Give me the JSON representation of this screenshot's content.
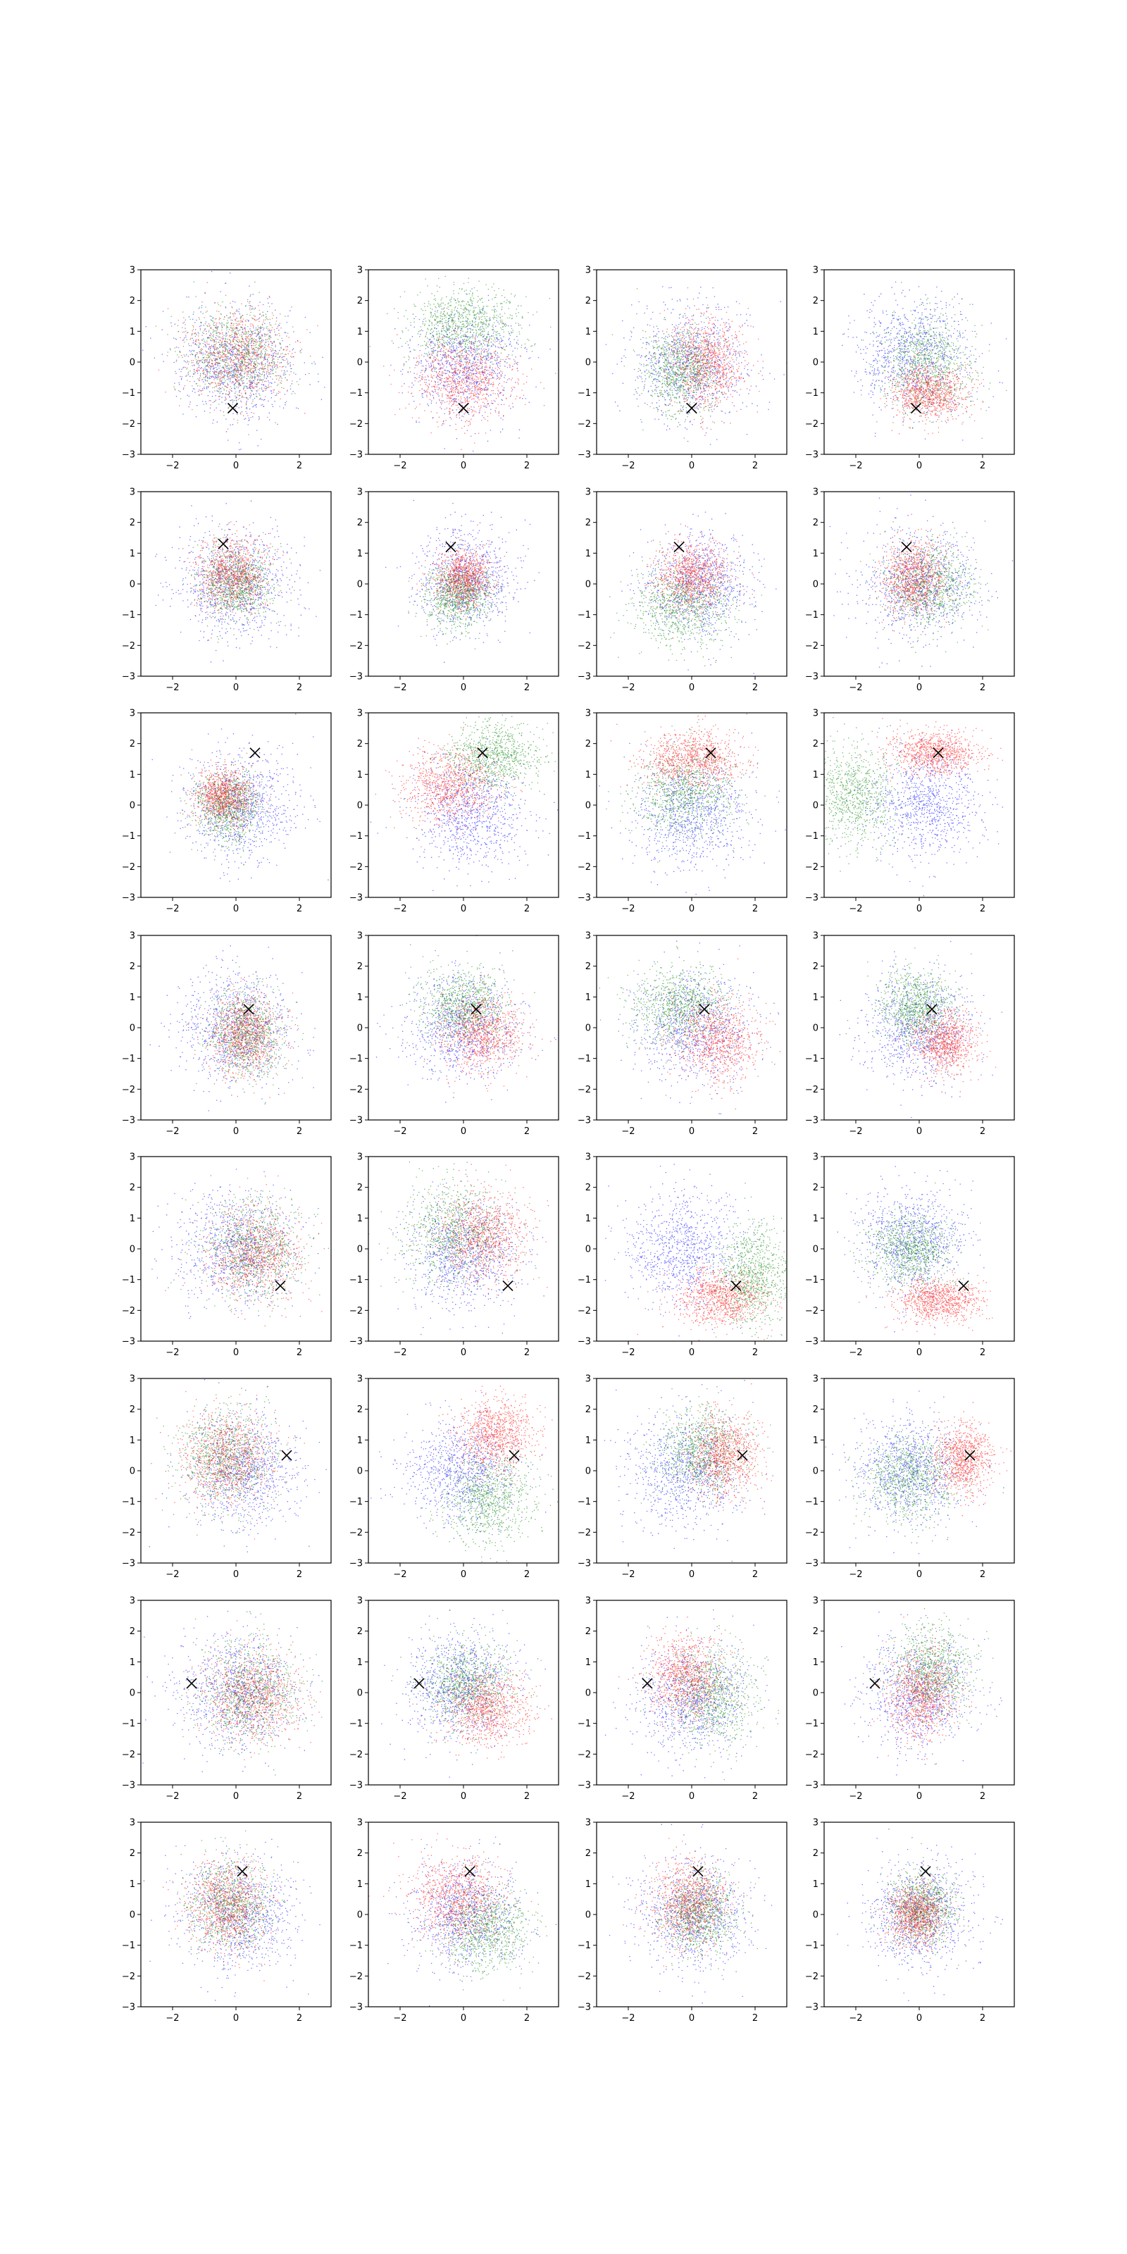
{
  "figure": {
    "rows": 8,
    "cols": 4,
    "colors": {
      "blue": "#0000ff",
      "green": "#008000",
      "red": "#ff0000",
      "marker": "#000000",
      "axis": "#000000"
    }
  },
  "axes": {
    "xlim": [
      -3,
      3
    ],
    "ylim": [
      -3,
      3
    ],
    "xticks": [
      -2,
      0,
      2
    ],
    "yticks": [
      -3,
      -2,
      -1,
      0,
      1,
      2,
      3
    ],
    "xtick_labels": [
      "−2",
      "0",
      "2"
    ],
    "ytick_labels": [
      "−3",
      "−2",
      "−1",
      "0",
      "1",
      "2",
      "3"
    ]
  },
  "chart_data": [
    {
      "type": "scatter",
      "marker": [
        -0.1,
        -1.5
      ],
      "series": [
        {
          "color": "blue",
          "cx": 0.0,
          "cy": 0.0,
          "sx": 0.9,
          "sy": 0.9
        },
        {
          "color": "green",
          "cx": 0.0,
          "cy": 0.2,
          "sx": 0.8,
          "sy": 0.75
        },
        {
          "color": "red",
          "cx": 0.0,
          "cy": 0.2,
          "sx": 0.8,
          "sy": 0.75
        }
      ]
    },
    {
      "type": "scatter",
      "marker": [
        0.0,
        -1.5
      ],
      "series": [
        {
          "color": "blue",
          "cx": 0.0,
          "cy": 0.0,
          "sx": 0.85,
          "sy": 0.85
        },
        {
          "color": "green",
          "cx": 0.0,
          "cy": 1.2,
          "sx": 0.9,
          "sy": 0.6
        },
        {
          "color": "red",
          "cx": 0.0,
          "cy": -0.6,
          "sx": 0.8,
          "sy": 0.65
        }
      ]
    },
    {
      "type": "scatter",
      "marker": [
        0.0,
        -1.5
      ],
      "series": [
        {
          "color": "blue",
          "cx": 0.0,
          "cy": 0.0,
          "sx": 0.9,
          "sy": 0.9
        },
        {
          "color": "green",
          "cx": -0.3,
          "cy": -0.3,
          "sx": 0.6,
          "sy": 0.7
        },
        {
          "color": "red",
          "cx": 0.5,
          "cy": 0.0,
          "sx": 0.6,
          "sy": 0.75
        }
      ]
    },
    {
      "type": "scatter",
      "marker": [
        -0.1,
        -1.5
      ],
      "series": [
        {
          "color": "blue",
          "cx": -0.2,
          "cy": 0.3,
          "sx": 0.9,
          "sy": 0.9
        },
        {
          "color": "green",
          "cx": 0.3,
          "cy": 0.0,
          "sx": 0.7,
          "sy": 0.8
        },
        {
          "color": "red",
          "cx": 0.3,
          "cy": -1.0,
          "sx": 0.6,
          "sy": 0.45
        }
      ]
    },
    {
      "type": "scatter",
      "marker": [
        -0.4,
        1.3
      ],
      "series": [
        {
          "color": "blue",
          "cx": 0.0,
          "cy": 0.0,
          "sx": 0.9,
          "sy": 0.9
        },
        {
          "color": "green",
          "cx": 0.0,
          "cy": 0.0,
          "sx": 0.55,
          "sy": 0.6
        },
        {
          "color": "red",
          "cx": -0.1,
          "cy": 0.3,
          "sx": 0.55,
          "sy": 0.6
        }
      ]
    },
    {
      "type": "scatter",
      "marker": [
        -0.4,
        1.2
      ],
      "series": [
        {
          "color": "blue",
          "cx": 0.1,
          "cy": 0.2,
          "sx": 0.8,
          "sy": 0.8
        },
        {
          "color": "green",
          "cx": -0.2,
          "cy": -0.4,
          "sx": 0.55,
          "sy": 0.5
        },
        {
          "color": "red",
          "cx": 0.0,
          "cy": 0.2,
          "sx": 0.45,
          "sy": 0.45
        }
      ]
    },
    {
      "type": "scatter",
      "marker": [
        -0.4,
        1.2
      ],
      "series": [
        {
          "color": "blue",
          "cx": 0.2,
          "cy": 0.0,
          "sx": 0.85,
          "sy": 0.85
        },
        {
          "color": "green",
          "cx": -0.3,
          "cy": -0.7,
          "sx": 0.8,
          "sy": 0.65
        },
        {
          "color": "red",
          "cx": 0.0,
          "cy": 0.3,
          "sx": 0.55,
          "sy": 0.55
        }
      ]
    },
    {
      "type": "scatter",
      "marker": [
        -0.4,
        1.2
      ],
      "series": [
        {
          "color": "blue",
          "cx": 0.0,
          "cy": 0.0,
          "sx": 0.9,
          "sy": 0.9
        },
        {
          "color": "green",
          "cx": 0.3,
          "cy": -0.1,
          "sx": 0.7,
          "sy": 0.65
        },
        {
          "color": "red",
          "cx": -0.2,
          "cy": 0.2,
          "sx": 0.5,
          "sy": 0.6
        }
      ]
    },
    {
      "type": "scatter",
      "marker": [
        0.6,
        1.7
      ],
      "series": [
        {
          "color": "blue",
          "cx": 0.1,
          "cy": 0.0,
          "sx": 0.85,
          "sy": 0.85
        },
        {
          "color": "green",
          "cx": -0.3,
          "cy": 0.0,
          "sx": 0.5,
          "sy": 0.55
        },
        {
          "color": "red",
          "cx": -0.4,
          "cy": 0.3,
          "sx": 0.45,
          "sy": 0.45
        }
      ]
    },
    {
      "type": "scatter",
      "marker": [
        0.6,
        1.7
      ],
      "series": [
        {
          "color": "blue",
          "cx": 0.2,
          "cy": -0.3,
          "sx": 0.9,
          "sy": 0.85
        },
        {
          "color": "green",
          "cx": 0.9,
          "cy": 1.6,
          "sx": 0.75,
          "sy": 0.55
        },
        {
          "color": "red",
          "cx": -0.5,
          "cy": 0.6,
          "sx": 0.75,
          "sy": 0.6
        }
      ]
    },
    {
      "type": "scatter",
      "marker": [
        0.6,
        1.7
      ],
      "series": [
        {
          "color": "blue",
          "cx": 0.0,
          "cy": -0.3,
          "sx": 0.9,
          "sy": 0.9
        },
        {
          "color": "green",
          "cx": -0.2,
          "cy": 0.4,
          "sx": 0.8,
          "sy": 0.7
        },
        {
          "color": "red",
          "cx": 0.0,
          "cy": 1.5,
          "sx": 0.75,
          "sy": 0.45
        }
      ]
    },
    {
      "type": "scatter",
      "marker": [
        0.6,
        1.7
      ],
      "series": [
        {
          "color": "blue",
          "cx": 0.2,
          "cy": 0.0,
          "sx": 0.85,
          "sy": 0.85
        },
        {
          "color": "green",
          "cx": -2.1,
          "cy": 0.3,
          "sx": 0.7,
          "sy": 0.85
        },
        {
          "color": "red",
          "cx": 0.5,
          "cy": 1.7,
          "sx": 0.7,
          "sy": 0.35
        }
      ]
    },
    {
      "type": "scatter",
      "marker": [
        0.4,
        0.6
      ],
      "series": [
        {
          "color": "blue",
          "cx": 0.0,
          "cy": 0.0,
          "sx": 0.9,
          "sy": 0.9
        },
        {
          "color": "green",
          "cx": 0.3,
          "cy": -0.2,
          "sx": 0.6,
          "sy": 0.7
        },
        {
          "color": "red",
          "cx": 0.3,
          "cy": -0.2,
          "sx": 0.55,
          "sy": 0.65
        }
      ]
    },
    {
      "type": "scatter",
      "marker": [
        0.4,
        0.6
      ],
      "series": [
        {
          "color": "blue",
          "cx": 0.0,
          "cy": 0.0,
          "sx": 0.85,
          "sy": 0.85
        },
        {
          "color": "green",
          "cx": 0.0,
          "cy": 0.7,
          "sx": 0.7,
          "sy": 0.6
        },
        {
          "color": "red",
          "cx": 0.6,
          "cy": -0.2,
          "sx": 0.65,
          "sy": 0.6
        }
      ]
    },
    {
      "type": "scatter",
      "marker": [
        0.4,
        0.6
      ],
      "series": [
        {
          "color": "blue",
          "cx": 0.0,
          "cy": 0.0,
          "sx": 0.9,
          "sy": 0.9
        },
        {
          "color": "green",
          "cx": -0.4,
          "cy": 0.7,
          "sx": 0.75,
          "sy": 0.65
        },
        {
          "color": "red",
          "cx": 0.8,
          "cy": -0.4,
          "sx": 0.65,
          "sy": 0.65
        }
      ]
    },
    {
      "type": "scatter",
      "marker": [
        0.4,
        0.6
      ],
      "series": [
        {
          "color": "blue",
          "cx": 0.0,
          "cy": 0.0,
          "sx": 0.85,
          "sy": 0.85
        },
        {
          "color": "green",
          "cx": -0.1,
          "cy": 0.7,
          "sx": 0.6,
          "sy": 0.6
        },
        {
          "color": "red",
          "cx": 0.8,
          "cy": -0.5,
          "sx": 0.5,
          "sy": 0.5
        }
      ]
    },
    {
      "type": "scatter",
      "marker": [
        1.4,
        -1.2
      ],
      "series": [
        {
          "color": "blue",
          "cx": 0.0,
          "cy": 0.0,
          "sx": 0.9,
          "sy": 0.9
        },
        {
          "color": "green",
          "cx": 0.5,
          "cy": 0.0,
          "sx": 0.8,
          "sy": 0.8
        },
        {
          "color": "red",
          "cx": 0.6,
          "cy": -0.2,
          "sx": 0.75,
          "sy": 0.75
        }
      ]
    },
    {
      "type": "scatter",
      "marker": [
        1.4,
        -1.2
      ],
      "series": [
        {
          "color": "blue",
          "cx": 0.0,
          "cy": -0.2,
          "sx": 0.85,
          "sy": 0.85
        },
        {
          "color": "green",
          "cx": -0.3,
          "cy": 0.5,
          "sx": 0.8,
          "sy": 0.8
        },
        {
          "color": "red",
          "cx": 0.6,
          "cy": 0.4,
          "sx": 0.7,
          "sy": 0.7
        }
      ]
    },
    {
      "type": "scatter",
      "marker": [
        1.4,
        -1.2
      ],
      "series": [
        {
          "color": "blue",
          "cx": -0.3,
          "cy": 0.0,
          "sx": 0.9,
          "sy": 0.9
        },
        {
          "color": "green",
          "cx": 1.9,
          "cy": -0.8,
          "sx": 0.55,
          "sy": 0.8
        },
        {
          "color": "red",
          "cx": 0.9,
          "cy": -1.6,
          "sx": 0.7,
          "sy": 0.45
        }
      ]
    },
    {
      "type": "scatter",
      "marker": [
        1.4,
        -1.2
      ],
      "series": [
        {
          "color": "blue",
          "cx": -0.2,
          "cy": 0.3,
          "sx": 0.8,
          "sy": 0.85
        },
        {
          "color": "green",
          "cx": -0.3,
          "cy": 0.0,
          "sx": 0.65,
          "sy": 0.6
        },
        {
          "color": "red",
          "cx": 0.6,
          "cy": -1.7,
          "sx": 0.65,
          "sy": 0.35
        }
      ]
    },
    {
      "type": "scatter",
      "marker": [
        1.6,
        0.5
      ],
      "series": [
        {
          "color": "blue",
          "cx": 0.2,
          "cy": 0.0,
          "sx": 0.9,
          "sy": 0.9
        },
        {
          "color": "green",
          "cx": -0.3,
          "cy": 0.4,
          "sx": 0.75,
          "sy": 0.8
        },
        {
          "color": "red",
          "cx": -0.3,
          "cy": 0.4,
          "sx": 0.7,
          "sy": 0.75
        }
      ]
    },
    {
      "type": "scatter",
      "marker": [
        1.6,
        0.5
      ],
      "series": [
        {
          "color": "blue",
          "cx": -0.1,
          "cy": 0.0,
          "sx": 0.85,
          "sy": 0.85
        },
        {
          "color": "green",
          "cx": 0.8,
          "cy": -0.9,
          "sx": 0.7,
          "sy": 0.75
        },
        {
          "color": "red",
          "cx": 1.0,
          "cy": 1.2,
          "sx": 0.6,
          "sy": 0.6
        }
      ]
    },
    {
      "type": "scatter",
      "marker": [
        1.6,
        0.5
      ],
      "series": [
        {
          "color": "blue",
          "cx": -0.2,
          "cy": 0.0,
          "sx": 0.9,
          "sy": 0.9
        },
        {
          "color": "green",
          "cx": 0.3,
          "cy": 0.6,
          "sx": 0.7,
          "sy": 0.7
        },
        {
          "color": "red",
          "cx": 1.0,
          "cy": 0.5,
          "sx": 0.55,
          "sy": 0.65
        }
      ]
    },
    {
      "type": "scatter",
      "marker": [
        1.6,
        0.5
      ],
      "series": [
        {
          "color": "blue",
          "cx": -0.3,
          "cy": 0.0,
          "sx": 0.85,
          "sy": 0.85
        },
        {
          "color": "green",
          "cx": -0.3,
          "cy": -0.2,
          "sx": 0.7,
          "sy": 0.7
        },
        {
          "color": "red",
          "cx": 1.4,
          "cy": 0.4,
          "sx": 0.45,
          "sy": 0.55
        }
      ]
    },
    {
      "type": "scatter",
      "marker": [
        -1.4,
        0.3
      ],
      "series": [
        {
          "color": "blue",
          "cx": 0.0,
          "cy": 0.0,
          "sx": 0.9,
          "sy": 0.9
        },
        {
          "color": "green",
          "cx": 0.4,
          "cy": 0.0,
          "sx": 0.8,
          "sy": 0.8
        },
        {
          "color": "red",
          "cx": 0.5,
          "cy": -0.1,
          "sx": 0.75,
          "sy": 0.75
        }
      ]
    },
    {
      "type": "scatter",
      "marker": [
        -1.4,
        0.3
      ],
      "series": [
        {
          "color": "blue",
          "cx": -0.1,
          "cy": 0.2,
          "sx": 0.85,
          "sy": 0.85
        },
        {
          "color": "green",
          "cx": 0.1,
          "cy": 0.3,
          "sx": 0.7,
          "sy": 0.7
        },
        {
          "color": "red",
          "cx": 0.7,
          "cy": -0.5,
          "sx": 0.65,
          "sy": 0.6
        }
      ]
    },
    {
      "type": "scatter",
      "marker": [
        -1.4,
        0.3
      ],
      "series": [
        {
          "color": "blue",
          "cx": 0.0,
          "cy": -0.2,
          "sx": 0.9,
          "sy": 0.9
        },
        {
          "color": "green",
          "cx": 0.6,
          "cy": -0.1,
          "sx": 0.7,
          "sy": 0.75
        },
        {
          "color": "red",
          "cx": -0.2,
          "cy": 0.5,
          "sx": 0.6,
          "sy": 0.65
        }
      ]
    },
    {
      "type": "scatter",
      "marker": [
        -1.4,
        0.3
      ],
      "series": [
        {
          "color": "blue",
          "cx": 0.0,
          "cy": 0.0,
          "sx": 0.85,
          "sy": 0.85
        },
        {
          "color": "green",
          "cx": 0.4,
          "cy": 0.7,
          "sx": 0.65,
          "sy": 0.7
        },
        {
          "color": "red",
          "cx": 0.1,
          "cy": -0.1,
          "sx": 0.55,
          "sy": 0.7
        }
      ]
    },
    {
      "type": "scatter",
      "marker": [
        0.2,
        1.4
      ],
      "series": [
        {
          "color": "blue",
          "cx": 0.1,
          "cy": 0.0,
          "sx": 0.9,
          "sy": 0.9
        },
        {
          "color": "green",
          "cx": -0.2,
          "cy": 0.3,
          "sx": 0.65,
          "sy": 0.75
        },
        {
          "color": "red",
          "cx": -0.3,
          "cy": 0.3,
          "sx": 0.6,
          "sy": 0.7
        }
      ]
    },
    {
      "type": "scatter",
      "marker": [
        0.2,
        1.4
      ],
      "series": [
        {
          "color": "blue",
          "cx": 0.0,
          "cy": 0.0,
          "sx": 0.85,
          "sy": 0.85
        },
        {
          "color": "green",
          "cx": 0.7,
          "cy": -0.5,
          "sx": 0.7,
          "sy": 0.7
        },
        {
          "color": "red",
          "cx": -0.2,
          "cy": 0.5,
          "sx": 0.7,
          "sy": 0.7
        }
      ]
    },
    {
      "type": "scatter",
      "marker": [
        0.2,
        1.4
      ],
      "series": [
        {
          "color": "blue",
          "cx": 0.0,
          "cy": 0.0,
          "sx": 0.9,
          "sy": 0.9
        },
        {
          "color": "green",
          "cx": 0.2,
          "cy": 0.0,
          "sx": 0.55,
          "sy": 0.65
        },
        {
          "color": "red",
          "cx": -0.1,
          "cy": 0.4,
          "sx": 0.6,
          "sy": 0.7
        }
      ]
    },
    {
      "type": "scatter",
      "marker": [
        0.2,
        1.4
      ],
      "series": [
        {
          "color": "blue",
          "cx": 0.0,
          "cy": 0.0,
          "sx": 0.85,
          "sy": 0.85
        },
        {
          "color": "green",
          "cx": 0.1,
          "cy": 0.2,
          "sx": 0.55,
          "sy": 0.55
        },
        {
          "color": "red",
          "cx": -0.1,
          "cy": 0.0,
          "sx": 0.45,
          "sy": 0.5
        }
      ]
    }
  ]
}
